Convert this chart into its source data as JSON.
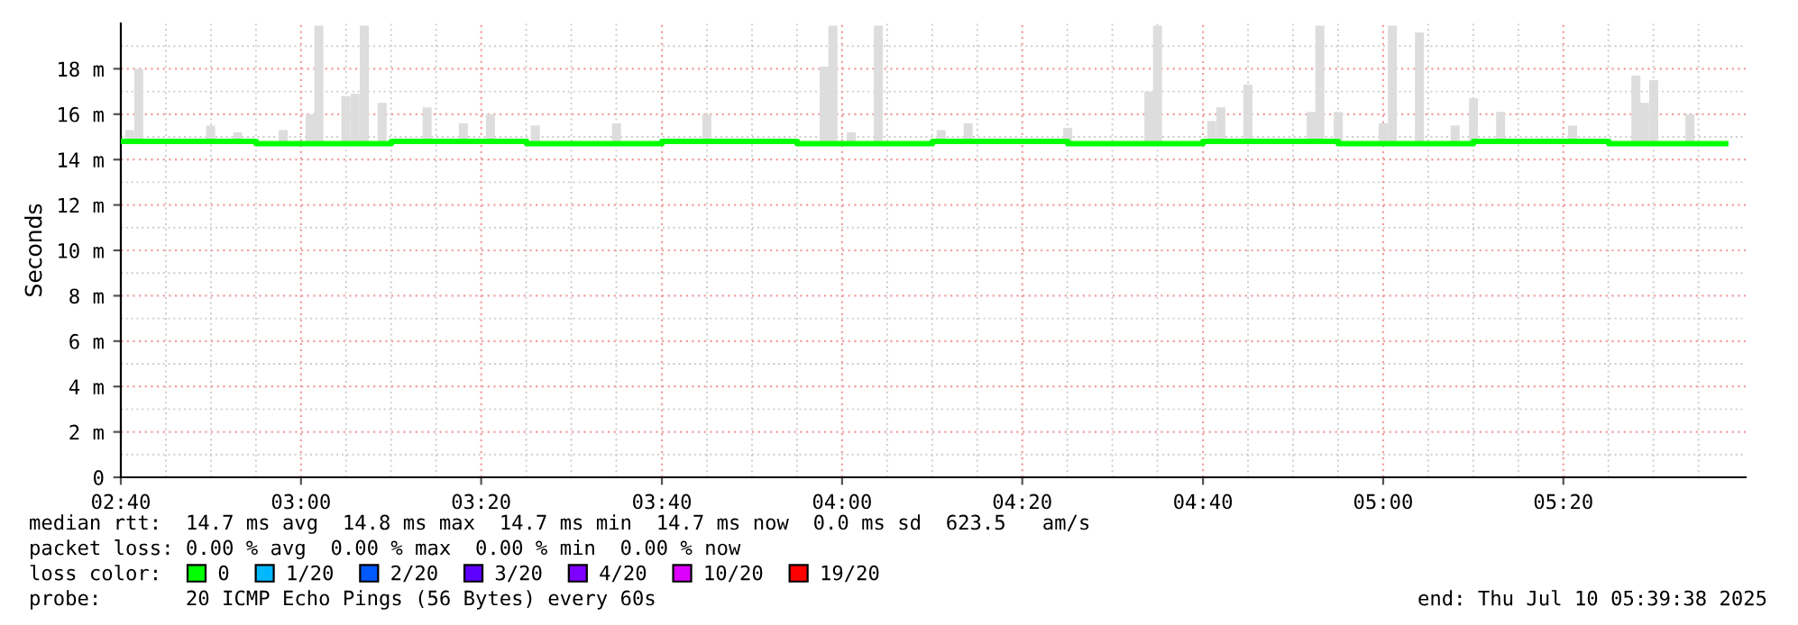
{
  "chart_data": {
    "type": "bar",
    "ylabel": "Seconds",
    "xlim": [
      2.667,
      5.67
    ],
    "ylim": [
      0,
      20
    ],
    "xticks": [
      {
        "value": 2.667,
        "label": "02:40"
      },
      {
        "value": 3.0,
        "label": "03:00"
      },
      {
        "value": 3.333,
        "label": "03:20"
      },
      {
        "value": 3.667,
        "label": "03:40"
      },
      {
        "value": 4.0,
        "label": "04:00"
      },
      {
        "value": 4.333,
        "label": "04:20"
      },
      {
        "value": 4.667,
        "label": "04:40"
      },
      {
        "value": 5.0,
        "label": "05:00"
      },
      {
        "value": 5.333,
        "label": "05:20"
      }
    ],
    "yticks": [
      0,
      {
        "value": 2,
        "label": "2 m"
      },
      {
        "value": 4,
        "label": "4 m"
      },
      {
        "value": 6,
        "label": "6 m"
      },
      {
        "value": 8,
        "label": "8 m"
      },
      {
        "value": 10,
        "label": "10 m"
      },
      {
        "value": 12,
        "label": "12 m"
      },
      {
        "value": 14,
        "label": "14 m"
      },
      {
        "value": 16,
        "label": "16 m"
      },
      {
        "value": 18,
        "label": "18 m"
      }
    ],
    "grid": true,
    "legend": "bottom",
    "legend_title": "loss color:",
    "series": [
      {
        "color": "#dddddd",
        "x": [
          2.683,
          2.7,
          2.833,
          2.883,
          2.967,
          3.017,
          3.033,
          3.083,
          3.1,
          3.117,
          3.15,
          3.233,
          3.3,
          3.35,
          3.433,
          3.583,
          3.75,
          3.967,
          3.983,
          4.017,
          4.067,
          4.183,
          4.233,
          4.417,
          4.567,
          4.583,
          4.683,
          4.7,
          4.75,
          4.867,
          4.883,
          4.917,
          5.0,
          5.017,
          5.067,
          5.133,
          5.167,
          5.217,
          5.35,
          5.467,
          5.483,
          5.5,
          5.567
        ],
        "base": [
          14.7,
          14.7,
          14.7,
          14.7,
          14.7,
          14.7,
          14.7,
          14.7,
          14.7,
          14.7,
          14.7,
          14.7,
          14.7,
          14.7,
          14.7,
          14.7,
          14.7,
          14.7,
          14.7,
          14.7,
          14.7,
          14.7,
          14.7,
          14.7,
          14.7,
          14.7,
          14.7,
          14.7,
          14.7,
          14.7,
          14.7,
          14.7,
          14.7,
          14.7,
          14.7,
          14.7,
          14.7,
          14.7,
          14.7,
          14.7,
          14.7,
          14.7,
          14.7
        ],
        "values": [
          0.6,
          3.3,
          0.8,
          0.5,
          0.6,
          1.3,
          5.2,
          2.1,
          2.2,
          5.2,
          1.8,
          1.6,
          0.9,
          1.3,
          0.8,
          0.9,
          1.3,
          3.4,
          5.2,
          0.5,
          5.2,
          0.6,
          0.9,
          0.7,
          2.3,
          5.2,
          1.0,
          1.6,
          2.6,
          1.4,
          5.2,
          1.4,
          0.9,
          5.2,
          4.9,
          0.8,
          2.0,
          1.4,
          0.8,
          3.0,
          1.8,
          2.8,
          1.3
        ]
      },
      {
        "type": "step",
        "name": "0",
        "color": "#00ff00",
        "x": [
          2.667,
          2.917,
          3.167,
          3.417,
          3.667,
          3.917,
          4.167,
          4.417,
          4.667,
          4.917,
          5.167,
          5.417,
          5.633
        ],
        "values": [
          14.8,
          14.7,
          14.8,
          14.7,
          14.8,
          14.7,
          14.8,
          14.7,
          14.8,
          14.7,
          14.8,
          14.7,
          14.7
        ]
      },
      {
        "name": "1/20",
        "color": "#00b8ff"
      },
      {
        "name": "2/20",
        "color": "#0059ff"
      },
      {
        "name": "3/20",
        "color": "#5e00ff"
      },
      {
        "name": "4/20",
        "color": "#7e00ff"
      },
      {
        "name": "10/20",
        "color": "#dd00ff"
      },
      {
        "name": "19/20",
        "color": "#ff0000"
      }
    ],
    "annotations": [
      "median rtt:  14.7 ms avg  14.8 ms max  14.7 ms min  14.7 ms now  0.0 ms sd  623.5   am/s",
      "packet loss: 0.00 % avg  0.00 % max  0.00 % min  0.00 % now",
      "probe:       20 ICMP Echo Pings (56 Bytes) every 60s",
      "end: Thu Jul 10 05:39:38 2025"
    ]
  }
}
